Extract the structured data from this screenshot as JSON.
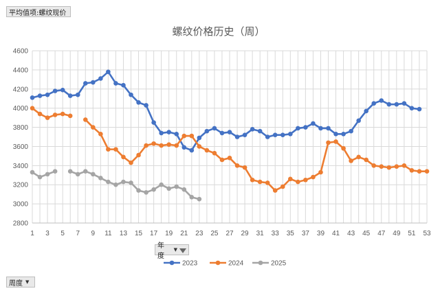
{
  "pivot": {
    "value_field": "平均值项:螺纹现价",
    "filter_field": "年度",
    "axis_field": "周度"
  },
  "chart_data": {
    "type": "line",
    "title": "螺纹价格历史（周）",
    "xlabel": "",
    "ylabel": "",
    "ylim": [
      2800,
      4600
    ],
    "yticks": [
      2800,
      3000,
      3200,
      3400,
      3600,
      3800,
      4000,
      4200,
      4400,
      4600
    ],
    "xlim": [
      1,
      53
    ],
    "xticks": [
      1,
      3,
      5,
      7,
      9,
      11,
      13,
      15,
      17,
      19,
      21,
      23,
      25,
      27,
      29,
      31,
      33,
      35,
      37,
      39,
      41,
      43,
      45,
      47,
      49,
      51,
      53
    ],
    "grid": true,
    "legend_position": "bottom",
    "series": [
      {
        "name": "2023",
        "color": "#4472c4",
        "x": [
          1,
          2,
          3,
          4,
          5,
          6,
          7,
          8,
          9,
          10,
          11,
          12,
          13,
          14,
          15,
          16,
          17,
          18,
          19,
          20,
          21,
          22,
          23,
          24,
          25,
          26,
          27,
          28,
          29,
          30,
          31,
          32,
          33,
          34,
          35,
          36,
          37,
          38,
          39,
          40,
          41,
          42,
          43,
          44,
          45,
          46,
          47,
          48,
          49,
          50,
          51,
          52
        ],
        "values": [
          4110,
          4130,
          4140,
          4180,
          4190,
          4130,
          4140,
          4260,
          4270,
          4310,
          4380,
          4260,
          4240,
          4140,
          4060,
          4030,
          3850,
          3740,
          3750,
          3730,
          3590,
          3560,
          3690,
          3760,
          3790,
          3740,
          3750,
          3700,
          3720,
          3780,
          3760,
          3700,
          3720,
          3720,
          3730,
          3790,
          3800,
          3840,
          3790,
          3790,
          3730,
          3730,
          3760,
          3870,
          3970,
          4050,
          4080,
          4040,
          4040,
          4050,
          4000,
          3990
        ]
      },
      {
        "name": "2024",
        "color": "#ed7d31",
        "x": [
          1,
          2,
          3,
          4,
          5,
          6,
          8,
          9,
          10,
          11,
          12,
          13,
          14,
          15,
          16,
          17,
          18,
          19,
          20,
          21,
          22,
          23,
          24,
          25,
          26,
          27,
          28,
          29,
          30,
          31,
          32,
          33,
          34,
          35,
          36,
          37,
          38,
          39,
          40,
          41,
          42,
          43,
          44,
          45,
          46,
          47,
          48,
          49,
          50,
          51,
          52,
          53
        ],
        "values": [
          4000,
          3940,
          3900,
          3930,
          3940,
          3920,
          3880,
          3800,
          3730,
          3570,
          3570,
          3490,
          3430,
          3510,
          3610,
          3630,
          3610,
          3620,
          3610,
          3710,
          3710,
          3600,
          3560,
          3530,
          3460,
          3480,
          3400,
          3380,
          3250,
          3230,
          3220,
          3140,
          3180,
          3260,
          3230,
          3250,
          3280,
          3330,
          3640,
          3650,
          3580,
          3450,
          3490,
          3460,
          3400,
          3390,
          3380,
          3390,
          3400,
          3350,
          3340,
          3340
        ]
      },
      {
        "name": "2025",
        "color": "#a5a5a5",
        "x": [
          1,
          2,
          3,
          4,
          6,
          7,
          8,
          9,
          10,
          11,
          12,
          13,
          14,
          15,
          16,
          17,
          18,
          19,
          20,
          21,
          22,
          23
        ],
        "values": [
          3330,
          3280,
          3310,
          3340,
          3340,
          3310,
          3340,
          3310,
          3270,
          3230,
          3200,
          3230,
          3220,
          3140,
          3120,
          3150,
          3200,
          3160,
          3180,
          3150,
          3070,
          3050
        ]
      }
    ]
  }
}
